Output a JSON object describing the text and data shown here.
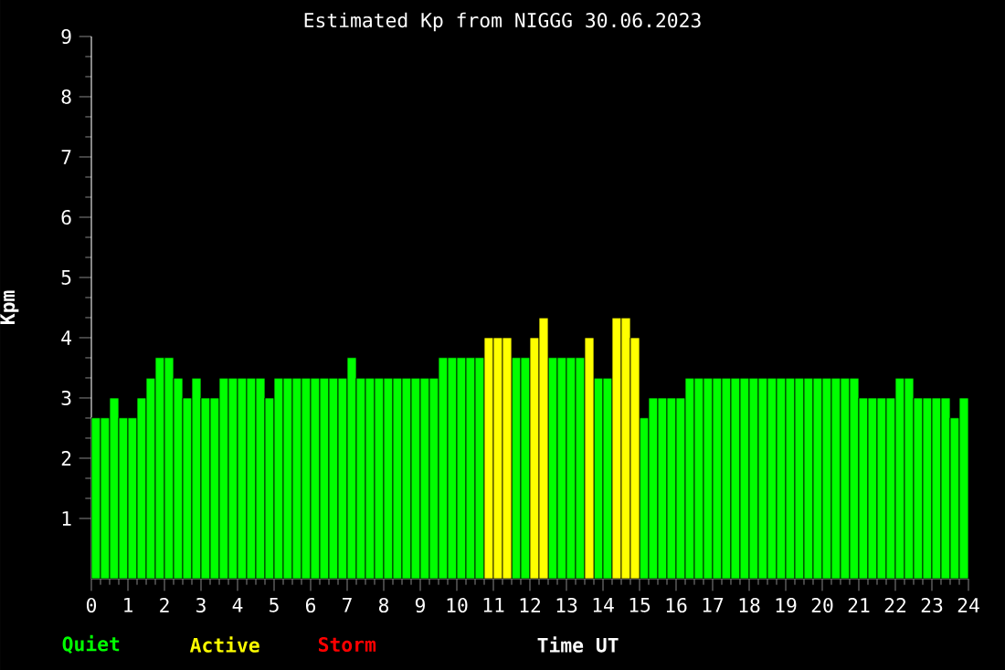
{
  "chart_data": {
    "type": "bar",
    "title": "Estimated Kp from NIGGG 30.06.2023",
    "xlabel": "Time UT",
    "ylabel": "Kpm",
    "xlim": [
      0,
      24
    ],
    "ylim": [
      0,
      9
    ],
    "xticks": [
      0,
      1,
      2,
      3,
      4,
      5,
      6,
      7,
      8,
      9,
      10,
      11,
      12,
      13,
      14,
      15,
      16,
      17,
      18,
      19,
      20,
      21,
      22,
      23,
      24
    ],
    "yticks": [
      1,
      2,
      3,
      4,
      5,
      6,
      7,
      8,
      9
    ],
    "legend": "bottom left",
    "series": [
      {
        "name": "Quiet",
        "color": "#00ff00",
        "x": [
          0.125,
          0.375,
          0.625,
          0.875,
          1.125,
          1.375,
          1.625,
          1.875,
          2.125,
          2.375,
          2.625,
          2.875,
          3.125,
          3.375,
          3.625,
          3.875,
          4.125,
          4.375,
          4.625,
          4.875,
          5.125,
          5.375,
          5.625,
          5.875,
          6.125,
          6.375,
          6.625,
          6.875,
          7.125,
          7.375,
          7.625,
          7.875,
          8.125,
          8.375,
          8.625,
          8.875,
          9.125,
          9.375,
          9.625,
          9.875,
          10.125,
          10.375,
          10.625,
          11.625,
          11.875,
          12.625,
          12.875,
          13.125,
          13.375,
          13.875,
          14.125,
          15.125,
          15.375,
          15.625,
          15.875,
          16.125,
          16.375,
          16.625,
          16.875,
          17.125,
          17.375,
          17.625,
          17.875,
          18.125,
          18.375,
          18.625,
          18.875,
          19.125,
          19.375,
          19.625,
          19.875,
          20.125,
          20.375,
          20.625,
          20.875,
          21.125,
          21.375,
          21.625,
          21.875,
          22.125,
          22.375,
          22.625,
          22.875,
          23.125,
          23.375,
          23.625,
          23.875
        ],
        "values": [
          2.67,
          2.67,
          3,
          2.67,
          2.67,
          3,
          3.33,
          3.67,
          3.67,
          3.33,
          3,
          3.33,
          3,
          3,
          3.33,
          3.33,
          3.33,
          3.33,
          3.33,
          3,
          3.33,
          3.33,
          3.33,
          3.33,
          3.33,
          3.33,
          3.33,
          3.33,
          3.67,
          3.33,
          3.33,
          3.33,
          3.33,
          3.33,
          3.33,
          3.33,
          3.33,
          3.33,
          3.67,
          3.67,
          3.67,
          3.67,
          3.67,
          3.67,
          3.67,
          3.67,
          3.67,
          3.67,
          3.67,
          3.33,
          3.33,
          2.67,
          3,
          3,
          3,
          3,
          3.33,
          3.33,
          3.33,
          3.33,
          3.33,
          3.33,
          3.33,
          3.33,
          3.33,
          3.33,
          3.33,
          3.33,
          3.33,
          3.33,
          3.33,
          3.33,
          3.33,
          3.33,
          3.33,
          3,
          3,
          3,
          3,
          3.33,
          3.33,
          3,
          3,
          3,
          3,
          2.67,
          3
        ]
      },
      {
        "name": "Active",
        "color": "#ffff00",
        "x": [
          10.875,
          11.125,
          11.375,
          12.125,
          12.375,
          13.625,
          14.375,
          14.625,
          14.875
        ],
        "values": [
          4,
          4,
          4,
          4,
          4.33,
          4,
          4.33,
          4.33,
          4
        ]
      },
      {
        "name": "Storm",
        "color": "#ff0000"
      }
    ]
  }
}
